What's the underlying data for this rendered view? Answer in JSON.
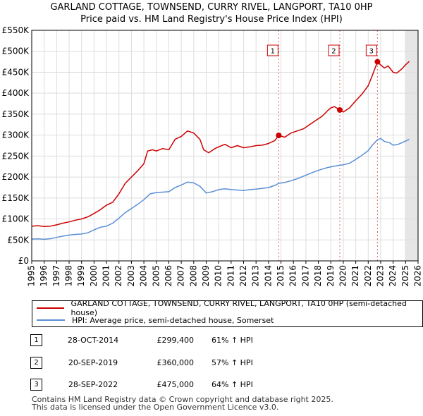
{
  "chart_data": {
    "type": "line",
    "title_line1": "GARLAND COTTAGE, TOWNSEND, CURRY RIVEL, LANGPORT, TA10 0HP",
    "title_line2": "Price paid vs. HM Land Registry's House Price Index (HPI)",
    "xlim": [
      1995,
      2026
    ],
    "ylim": [
      0,
      550000
    ],
    "x_ticks": [
      "1995",
      "1996",
      "1997",
      "1998",
      "1999",
      "2000",
      "2001",
      "2002",
      "2003",
      "2004",
      "2005",
      "2006",
      "2007",
      "2008",
      "2009",
      "2010",
      "2011",
      "2012",
      "2013",
      "2014",
      "2015",
      "2016",
      "2017",
      "2018",
      "2019",
      "2020",
      "2021",
      "2022",
      "2023",
      "2024",
      "2025",
      "2026"
    ],
    "y_ticks": [
      {
        "value": 0,
        "label": "£0"
      },
      {
        "value": 50000,
        "label": "£50K"
      },
      {
        "value": 100000,
        "label": "£100K"
      },
      {
        "value": 150000,
        "label": "£150K"
      },
      {
        "value": 200000,
        "label": "£200K"
      },
      {
        "value": 250000,
        "label": "£250K"
      },
      {
        "value": 300000,
        "label": "£300K"
      },
      {
        "value": 350000,
        "label": "£350K"
      },
      {
        "value": 400000,
        "label": "£400K"
      },
      {
        "value": 450000,
        "label": "£450K"
      },
      {
        "value": 500000,
        "label": "£500K"
      },
      {
        "value": 550000,
        "label": "£550K"
      }
    ],
    "grid": true,
    "shaded_future_from": 2025.0,
    "series": [
      {
        "name": "GARLAND COTTAGE, TOWNSEND, CURRY RIVEL, LANGPORT, TA10 0HP (semi-detached house)",
        "color": "#cc0000",
        "points": [
          [
            1995.0,
            83000
          ],
          [
            1995.5,
            84000
          ],
          [
            1996.0,
            82000
          ],
          [
            1996.5,
            83000
          ],
          [
            1997.0,
            86000
          ],
          [
            1997.5,
            90000
          ],
          [
            1998.0,
            93000
          ],
          [
            1998.5,
            97000
          ],
          [
            1999.0,
            100000
          ],
          [
            1999.5,
            105000
          ],
          [
            2000.0,
            113000
          ],
          [
            2000.5,
            122000
          ],
          [
            2001.0,
            133000
          ],
          [
            2001.5,
            140000
          ],
          [
            2002.0,
            160000
          ],
          [
            2002.5,
            185000
          ],
          [
            2003.0,
            200000
          ],
          [
            2003.5,
            215000
          ],
          [
            2004.0,
            232000
          ],
          [
            2004.3,
            262000
          ],
          [
            2004.7,
            265000
          ],
          [
            2005.0,
            262000
          ],
          [
            2005.5,
            268000
          ],
          [
            2006.0,
            265000
          ],
          [
            2006.5,
            290000
          ],
          [
            2007.0,
            297000
          ],
          [
            2007.5,
            310000
          ],
          [
            2008.0,
            305000
          ],
          [
            2008.5,
            290000
          ],
          [
            2008.8,
            265000
          ],
          [
            2009.2,
            258000
          ],
          [
            2009.7,
            268000
          ],
          [
            2010.0,
            272000
          ],
          [
            2010.5,
            278000
          ],
          [
            2011.0,
            270000
          ],
          [
            2011.5,
            275000
          ],
          [
            2012.0,
            270000
          ],
          [
            2012.5,
            272000
          ],
          [
            2013.0,
            275000
          ],
          [
            2013.5,
            276000
          ],
          [
            2014.0,
            280000
          ],
          [
            2014.5,
            287000
          ],
          [
            2014.82,
            299400
          ],
          [
            2015.3,
            295000
          ],
          [
            2015.8,
            305000
          ],
          [
            2016.3,
            310000
          ],
          [
            2016.8,
            315000
          ],
          [
            2017.3,
            325000
          ],
          [
            2017.8,
            335000
          ],
          [
            2018.3,
            345000
          ],
          [
            2018.8,
            360000
          ],
          [
            2019.0,
            365000
          ],
          [
            2019.3,
            368000
          ],
          [
            2019.72,
            360000
          ],
          [
            2020.0,
            355000
          ],
          [
            2020.5,
            365000
          ],
          [
            2021.0,
            382000
          ],
          [
            2021.5,
            398000
          ],
          [
            2022.0,
            418000
          ],
          [
            2022.3,
            440000
          ],
          [
            2022.74,
            475000
          ],
          [
            2022.9,
            470000
          ],
          [
            2023.3,
            460000
          ],
          [
            2023.6,
            465000
          ],
          [
            2024.0,
            450000
          ],
          [
            2024.3,
            448000
          ],
          [
            2024.7,
            458000
          ],
          [
            2025.0,
            468000
          ],
          [
            2025.3,
            476000
          ]
        ]
      },
      {
        "name": "HPI: Average price, semi-detached house, Somerset",
        "color": "#5b8fd6",
        "points": [
          [
            1995.0,
            52000
          ],
          [
            1995.5,
            52500
          ],
          [
            1996.0,
            51500
          ],
          [
            1996.5,
            53000
          ],
          [
            1997.0,
            56000
          ],
          [
            1997.5,
            59000
          ],
          [
            1998.0,
            61500
          ],
          [
            1998.5,
            63000
          ],
          [
            1999.0,
            64000
          ],
          [
            1999.5,
            67000
          ],
          [
            2000.0,
            74000
          ],
          [
            2000.5,
            80000
          ],
          [
            2001.0,
            83000
          ],
          [
            2001.5,
            90000
          ],
          [
            2002.0,
            102000
          ],
          [
            2002.5,
            115000
          ],
          [
            2003.0,
            125000
          ],
          [
            2003.5,
            135000
          ],
          [
            2004.0,
            146000
          ],
          [
            2004.5,
            160000
          ],
          [
            2005.0,
            163000
          ],
          [
            2005.5,
            164000
          ],
          [
            2006.0,
            165000
          ],
          [
            2006.5,
            175000
          ],
          [
            2007.0,
            181000
          ],
          [
            2007.5,
            188000
          ],
          [
            2008.0,
            186000
          ],
          [
            2008.5,
            178000
          ],
          [
            2009.0,
            162000
          ],
          [
            2009.5,
            165000
          ],
          [
            2010.0,
            170000
          ],
          [
            2010.5,
            172000
          ],
          [
            2011.0,
            170000
          ],
          [
            2011.5,
            169000
          ],
          [
            2012.0,
            168000
          ],
          [
            2012.5,
            170000
          ],
          [
            2013.0,
            171000
          ],
          [
            2013.5,
            173000
          ],
          [
            2014.0,
            175000
          ],
          [
            2014.5,
            180000
          ],
          [
            2014.82,
            185000
          ],
          [
            2015.3,
            187000
          ],
          [
            2015.8,
            191000
          ],
          [
            2016.3,
            196000
          ],
          [
            2016.8,
            202000
          ],
          [
            2017.3,
            208000
          ],
          [
            2017.8,
            214000
          ],
          [
            2018.3,
            219000
          ],
          [
            2018.8,
            223000
          ],
          [
            2019.3,
            226000
          ],
          [
            2019.72,
            228000
          ],
          [
            2020.0,
            229000
          ],
          [
            2020.5,
            233000
          ],
          [
            2021.0,
            242000
          ],
          [
            2021.5,
            252000
          ],
          [
            2022.0,
            263000
          ],
          [
            2022.3,
            275000
          ],
          [
            2022.74,
            289000
          ],
          [
            2023.0,
            292000
          ],
          [
            2023.3,
            285000
          ],
          [
            2023.7,
            282000
          ],
          [
            2024.0,
            276000
          ],
          [
            2024.4,
            278000
          ],
          [
            2024.8,
            283000
          ],
          [
            2025.3,
            290000
          ]
        ]
      }
    ],
    "sales": [
      {
        "num": "1",
        "x": 2014.82,
        "price": 299400
      },
      {
        "num": "2",
        "x": 2019.72,
        "price": 360000
      },
      {
        "num": "3",
        "x": 2022.74,
        "price": 475000
      }
    ]
  },
  "legend": {
    "property": "GARLAND COTTAGE, TOWNSEND, CURRY RIVEL, LANGPORT, TA10 0HP (semi-detached house)",
    "hpi": "HPI: Average price, semi-detached house, Somerset",
    "property_color": "#cc0000",
    "hpi_color": "#5b8fd6"
  },
  "transactions": [
    {
      "num": "1",
      "date": "28-OCT-2014",
      "price": "£299,400",
      "hpi": "61% ↑ HPI"
    },
    {
      "num": "2",
      "date": "20-SEP-2019",
      "price": "£360,000",
      "hpi": "57% ↑ HPI"
    },
    {
      "num": "3",
      "date": "28-SEP-2022",
      "price": "£475,000",
      "hpi": "64% ↑ HPI"
    }
  ],
  "footer": {
    "line1": "Contains HM Land Registry data © Crown copyright and database right 2025.",
    "line2": "This data is licensed under the Open Government Licence v3.0."
  }
}
